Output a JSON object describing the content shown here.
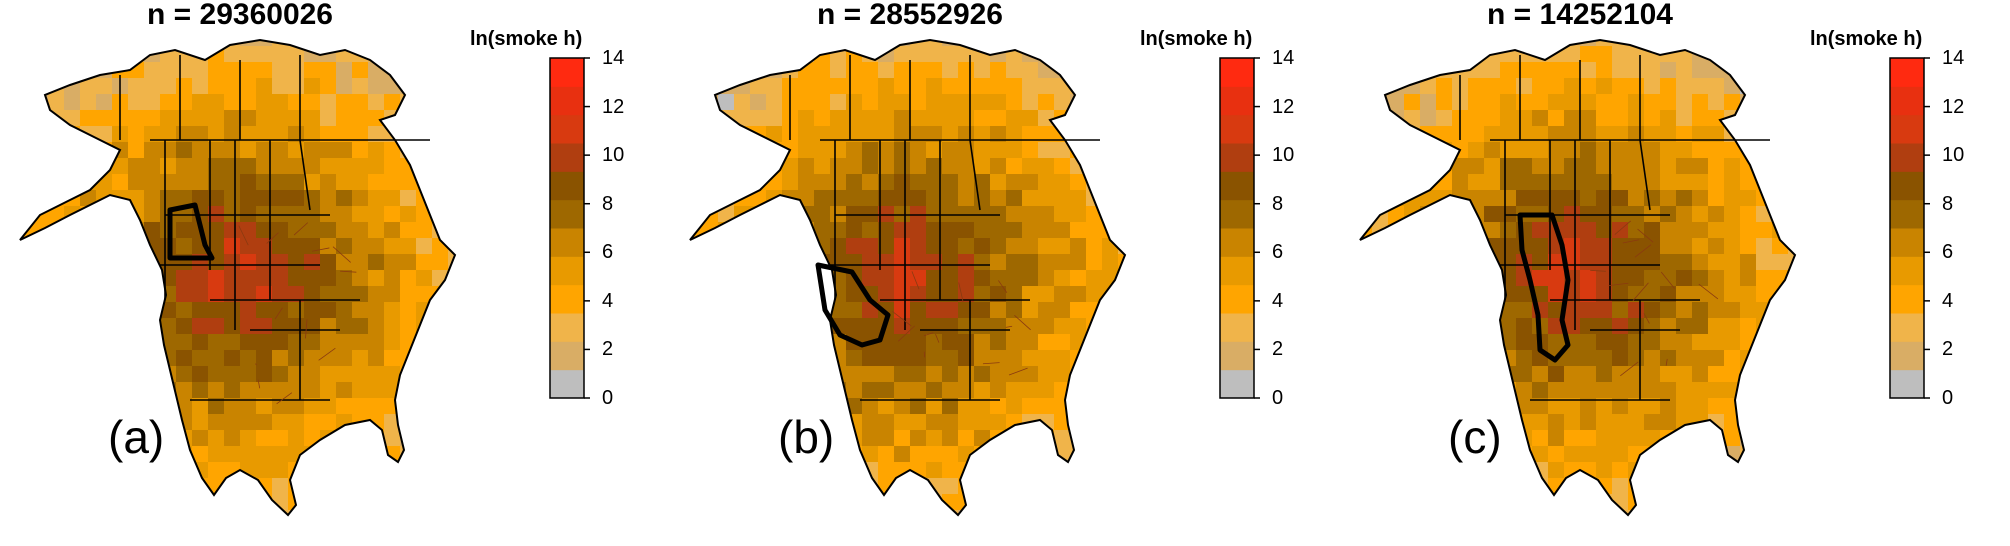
{
  "colorbar": {
    "title": "ln(smoke h)",
    "ticks": [
      0,
      2,
      4,
      6,
      8,
      10,
      12,
      14
    ],
    "range": [
      0,
      14
    ],
    "colors": [
      "#bebebe",
      "#d9ad65",
      "#f0b44a",
      "#ffa500",
      "#e89a00",
      "#c98400",
      "#9e6800",
      "#8a5300",
      "#b03e10",
      "#d83a10",
      "#e83010",
      "#ff2a10"
    ]
  },
  "panels": [
    {
      "id": "a",
      "title": "n = 29360026",
      "label": "(a)",
      "highlight": "idaho"
    },
    {
      "id": "b",
      "title": "n = 28552926",
      "label": "(b)",
      "highlight": "california-nevada"
    },
    {
      "id": "c",
      "title": "n = 14252104",
      "label": "(c)",
      "highlight": "montana-colorado"
    }
  ]
}
